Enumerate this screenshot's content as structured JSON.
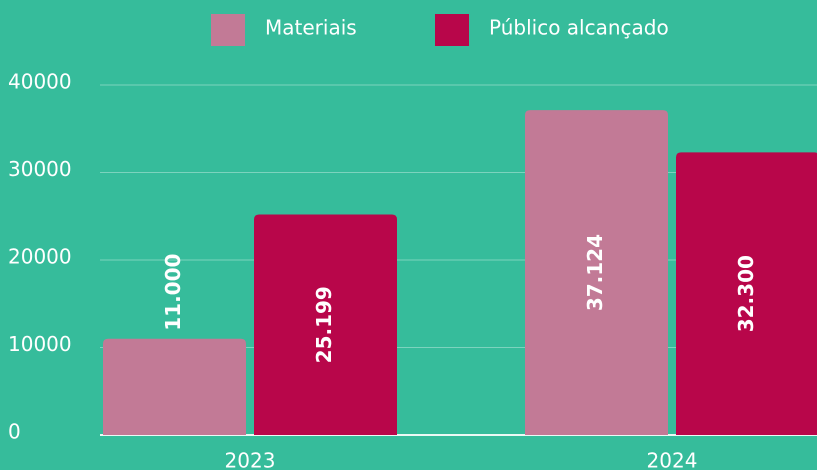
{
  "chart_data": {
    "type": "bar",
    "categories": [
      "2023",
      "2024"
    ],
    "series": [
      {
        "name": "Materiais",
        "color": "#c27a96",
        "values": [
          11000,
          37124
        ],
        "value_labels": [
          "11.000",
          "37.124"
        ]
      },
      {
        "name": "Público alcançado",
        "color": "#b8064a",
        "values": [
          25199,
          32300
        ],
        "value_labels": [
          "25.199",
          "32.300"
        ]
      }
    ],
    "ylim": [
      0,
      40000
    ],
    "yticks": [
      0,
      10000,
      20000,
      30000,
      40000
    ],
    "grid": true,
    "legend": "top"
  }
}
